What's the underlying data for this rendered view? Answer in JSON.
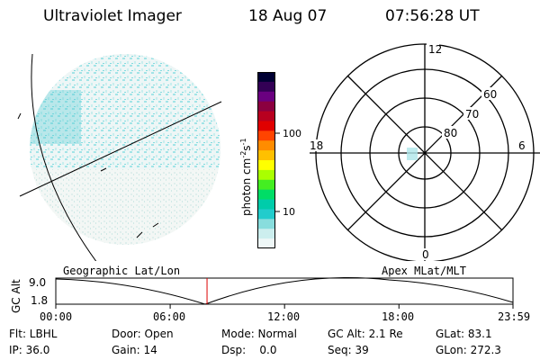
{
  "header": {
    "instrument": "Ultraviolet Imager",
    "date": "18 Aug 07",
    "time": "07:56:28 UT"
  },
  "left_panel": {
    "caption": "Geographic Lat/Lon"
  },
  "colorbar": {
    "unit_main": "photon cm",
    "unit_exp1": "-2",
    "unit_mid": "s",
    "unit_exp2": "-1",
    "ticks": [
      "100",
      "10"
    ],
    "colors": [
      "#000033",
      "#330055",
      "#6a0080",
      "#8b0040",
      "#b8001f",
      "#e00000",
      "#ff4400",
      "#ff8c00",
      "#ffc000",
      "#ffff00",
      "#aaff00",
      "#44ee22",
      "#00dd66",
      "#00ccaa",
      "#22cccc",
      "#88dddd",
      "#cceeee",
      "#eef7f7"
    ]
  },
  "polar": {
    "caption": "Apex MLat/MLT",
    "hour_labels": {
      "top": "12",
      "left": "18",
      "right": "6",
      "bottom": "0"
    },
    "lat_labels": [
      "60",
      "70",
      "80"
    ]
  },
  "timeline": {
    "ylabel": "GC Alt",
    "ticks_y": [
      "9.0",
      "1.8"
    ],
    "ticks_x": [
      "00:00",
      "06:00",
      "12:00",
      "18:00",
      "23:59"
    ],
    "marker_time": "07:56",
    "marker_color": "#dd0000"
  },
  "info": {
    "flt": "Flt: LBHL",
    "door": "Door: Open",
    "mode": "Mode: Normal",
    "gc_alt": "GC Alt: 2.1 Re",
    "glat": "GLat:  83.1",
    "ip": "IP: 36.0",
    "gain": "Gain: 14",
    "dsp": "Dsp:    0.0",
    "seq": "Seq: 39",
    "glon": "GLon: 272.3"
  }
}
